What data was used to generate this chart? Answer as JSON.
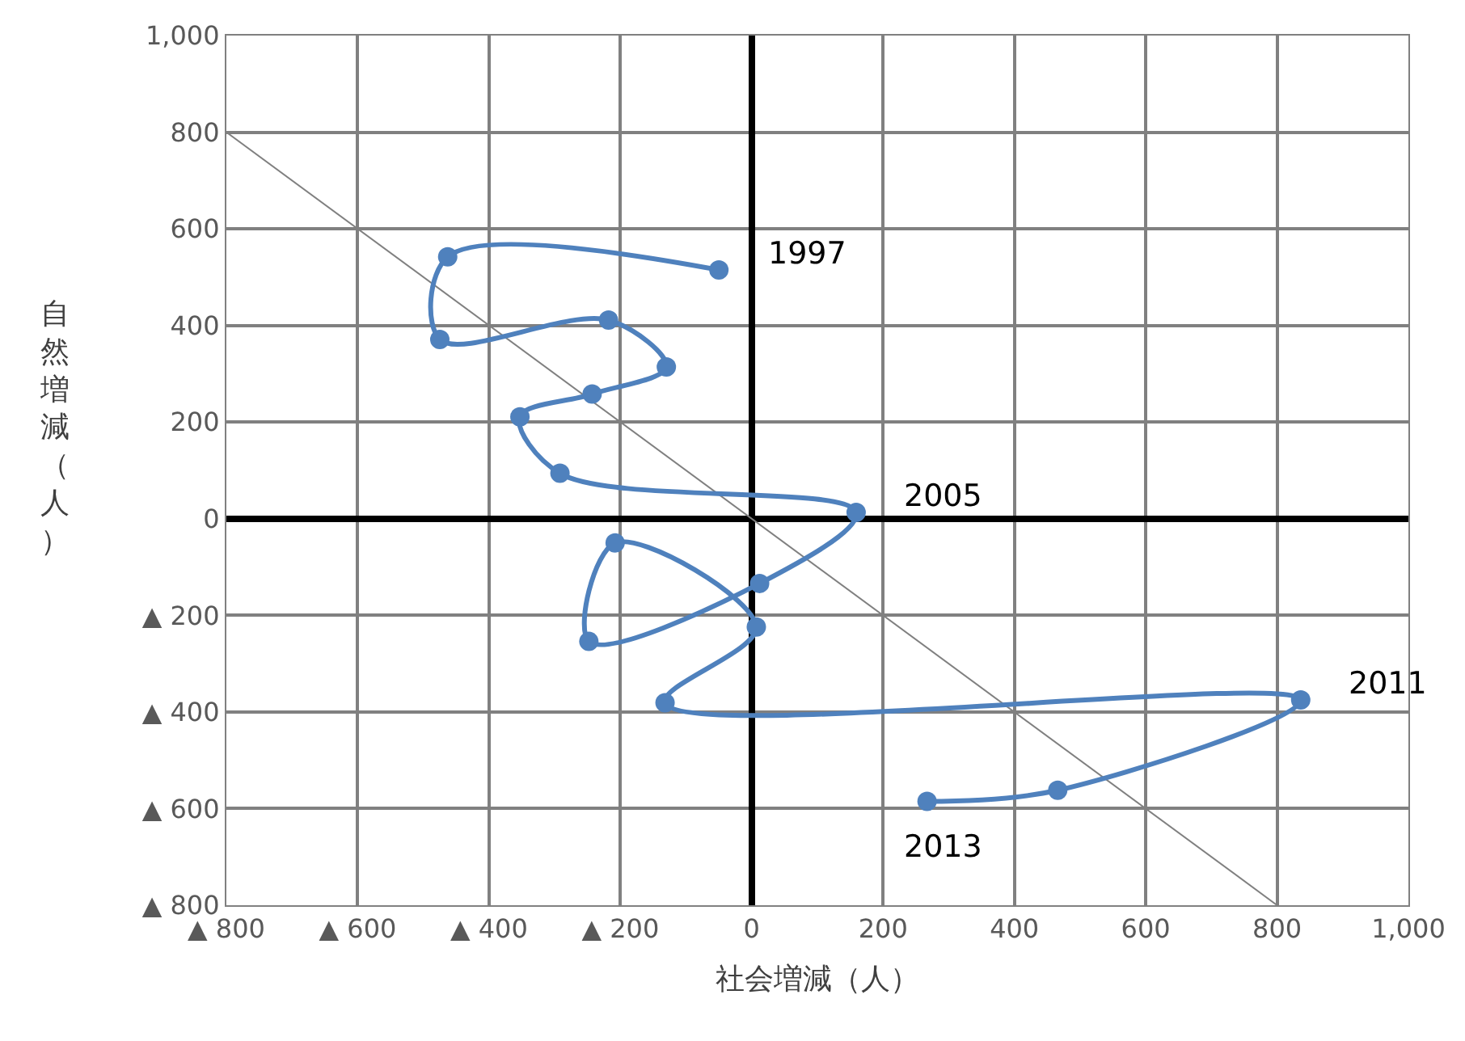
{
  "chart_data": {
    "type": "line",
    "xlabel": "社会増減（人）",
    "ylabel": "自然増減（人）",
    "series": [
      {
        "color": "#808080",
        "marker": "none",
        "x": [
          -800,
          800
        ],
        "values": [
          800,
          -800
        ]
      },
      {
        "color": "#4f81bd",
        "marker": "circle",
        "x": [
          -50,
          -463,
          -475,
          -218,
          -130,
          -243,
          -353,
          -292,
          159,
          12,
          -248,
          -208,
          7,
          -132,
          836,
          466,
          267
        ],
        "values": [
          515,
          542,
          371,
          411,
          314,
          258,
          211,
          94,
          13,
          -134,
          -254,
          -50,
          -224,
          -381,
          -375,
          -562,
          -585
        ]
      }
    ],
    "annotations": [
      {
        "text": "1997",
        "x": -50,
        "y": 515
      },
      {
        "text": "2005",
        "x": 159,
        "y": 13
      },
      {
        "text": "2011",
        "x": 836,
        "y": -375
      },
      {
        "text": "2013",
        "x": 267,
        "y": -585
      }
    ],
    "xlim": [
      -800,
      1000
    ],
    "xticks": [
      {
        "value": -800,
        "label": "▲ 800"
      },
      {
        "value": -600,
        "label": "▲ 600"
      },
      {
        "value": -400,
        "label": "▲ 400"
      },
      {
        "value": -200,
        "label": "▲ 200"
      },
      0,
      200,
      400,
      600,
      800,
      {
        "value": 1000,
        "label": "1,000"
      }
    ],
    "ylim": [
      -800,
      1000
    ],
    "yticks": [
      {
        "value": -800,
        "label": "▲ 800"
      },
      {
        "value": -600,
        "label": "▲ 600"
      },
      {
        "value": -400,
        "label": "▲ 400"
      },
      {
        "value": -200,
        "label": "▲ 200"
      },
      0,
      200,
      400,
      600,
      800,
      {
        "value": 1000,
        "label": "1,000"
      }
    ],
    "grid": true
  }
}
